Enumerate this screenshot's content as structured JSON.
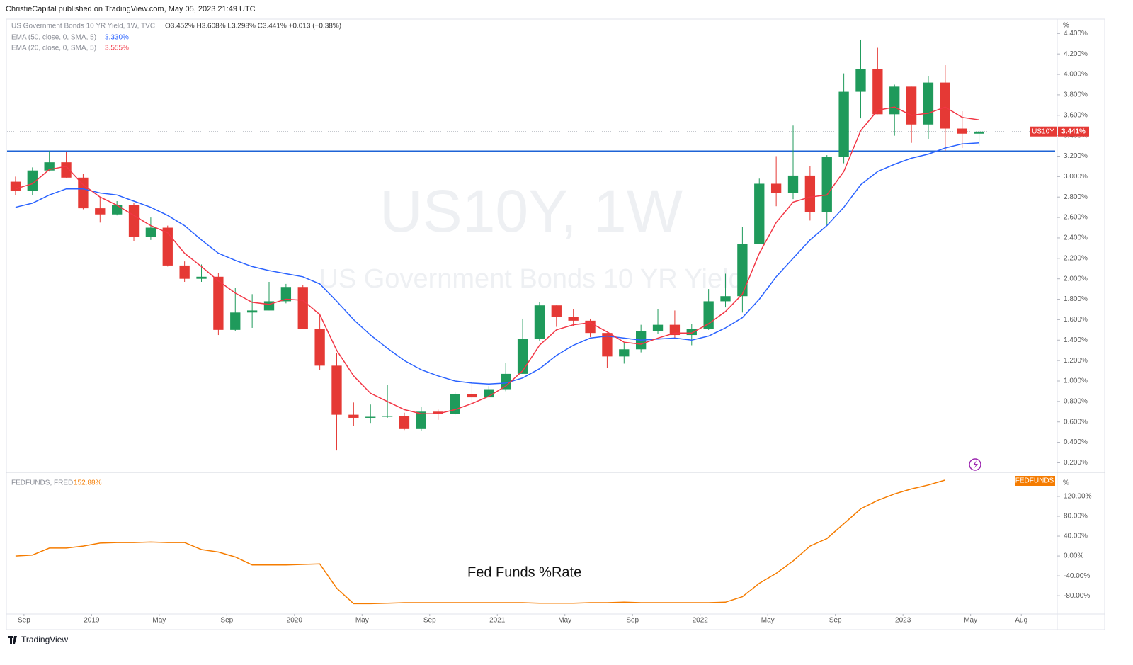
{
  "header": "ChristieCapital published on TradingView.com, May 05, 2023 21:49 UTC",
  "footer": "TradingView",
  "chart_data": [
    {
      "type": "candlestick",
      "title": "US Government Bonds 10 YR Yield, 1W, TVC",
      "ohlc_label": "O3.452% H3.608% L3.298% C3.441% +0.013 (+0.38%)",
      "watermark": "US10Y, 1W",
      "watermark_subtitle": "US Government Bonds 10 YR Yield",
      "y_unit": "%",
      "up_color": "#1f9a5b",
      "down_color": "#e53935",
      "x": [
        "2018-08",
        "2018-09",
        "2018-10",
        "2018-11",
        "2018-12",
        "2019-01",
        "2019-02",
        "2019-03",
        "2019-04",
        "2019-05",
        "2019-06",
        "2019-07",
        "2019-08",
        "2019-09",
        "2019-10",
        "2019-11",
        "2019-12",
        "2020-01",
        "2020-02",
        "2020-03",
        "2020-04",
        "2020-05",
        "2020-06",
        "2020-07",
        "2020-08",
        "2020-09",
        "2020-10",
        "2020-11",
        "2020-12",
        "2021-01",
        "2021-02",
        "2021-03",
        "2021-04",
        "2021-05",
        "2021-06",
        "2021-07",
        "2021-08",
        "2021-09",
        "2021-10",
        "2021-11",
        "2021-12",
        "2022-01",
        "2022-02",
        "2022-03",
        "2022-04",
        "2022-05",
        "2022-06",
        "2022-07",
        "2022-08",
        "2022-09",
        "2022-10",
        "2022-11",
        "2022-12",
        "2023-01",
        "2023-02",
        "2023-03",
        "2023-04",
        "2023-05"
      ],
      "xlim": [
        "2018-08",
        "2023-10"
      ],
      "xticks": [
        {
          "value": "2018-09",
          "label": "Sep"
        },
        {
          "value": "2019-01",
          "label": "2019"
        },
        {
          "value": "2019-05",
          "label": "May"
        },
        {
          "value": "2019-09",
          "label": "Sep"
        },
        {
          "value": "2020-01",
          "label": "2020"
        },
        {
          "value": "2020-05",
          "label": "May"
        },
        {
          "value": "2020-09",
          "label": "Sep"
        },
        {
          "value": "2021-01",
          "label": "2021"
        },
        {
          "value": "2021-05",
          "label": "May"
        },
        {
          "value": "2021-09",
          "label": "Sep"
        },
        {
          "value": "2022-01",
          "label": "2022"
        },
        {
          "value": "2022-05",
          "label": "May"
        },
        {
          "value": "2022-09",
          "label": "Sep"
        },
        {
          "value": "2023-01",
          "label": "2023"
        },
        {
          "value": "2023-05",
          "label": "May"
        },
        {
          "value": "2023-08",
          "label": "Aug"
        }
      ],
      "ylim": [
        0.12,
        4.52
      ],
      "yticks": [
        {
          "value": 0.2,
          "label": "0.200%"
        },
        {
          "value": 0.4,
          "label": "0.400%"
        },
        {
          "value": 0.6,
          "label": "0.600%"
        },
        {
          "value": 0.8,
          "label": "0.800%"
        },
        {
          "value": 1.0,
          "label": "1.000%"
        },
        {
          "value": 1.2,
          "label": "1.200%"
        },
        {
          "value": 1.4,
          "label": "1.400%"
        },
        {
          "value": 1.6,
          "label": "1.600%"
        },
        {
          "value": 1.8,
          "label": "1.800%"
        },
        {
          "value": 2.0,
          "label": "2.000%"
        },
        {
          "value": 2.2,
          "label": "2.200%"
        },
        {
          "value": 2.4,
          "label": "2.400%"
        },
        {
          "value": 2.6,
          "label": "2.600%"
        },
        {
          "value": 2.8,
          "label": "2.800%"
        },
        {
          "value": 3.0,
          "label": "3.000%"
        },
        {
          "value": 3.2,
          "label": "3.200%"
        },
        {
          "value": 3.4,
          "label": "3.400%"
        },
        {
          "value": 3.6,
          "label": "3.600%"
        },
        {
          "value": 3.8,
          "label": "3.800%"
        },
        {
          "value": 4.0,
          "label": "4.000%"
        },
        {
          "value": 4.2,
          "label": "4.200%"
        },
        {
          "value": 4.4,
          "label": "4.400%"
        }
      ],
      "ohlc": [
        [
          2.95,
          3.0,
          2.82,
          2.86
        ],
        [
          2.86,
          3.09,
          2.82,
          3.06
        ],
        [
          3.06,
          3.25,
          3.05,
          3.14
        ],
        [
          3.14,
          3.24,
          2.99,
          2.99
        ],
        [
          2.99,
          3.03,
          2.68,
          2.69
        ],
        [
          2.69,
          2.8,
          2.55,
          2.63
        ],
        [
          2.63,
          2.76,
          2.62,
          2.72
        ],
        [
          2.72,
          2.74,
          2.37,
          2.41
        ],
        [
          2.41,
          2.6,
          2.38,
          2.5
        ],
        [
          2.5,
          2.52,
          2.12,
          2.13
        ],
        [
          2.13,
          2.17,
          1.97,
          2.0
        ],
        [
          2.0,
          2.14,
          1.97,
          2.02
        ],
        [
          2.02,
          2.06,
          1.45,
          1.5
        ],
        [
          1.5,
          1.91,
          1.49,
          1.67
        ],
        [
          1.67,
          1.85,
          1.52,
          1.69
        ],
        [
          1.69,
          1.97,
          1.69,
          1.78
        ],
        [
          1.78,
          1.95,
          1.76,
          1.92
        ],
        [
          1.92,
          1.94,
          1.51,
          1.51
        ],
        [
          1.51,
          1.66,
          1.11,
          1.15
        ],
        [
          1.15,
          1.27,
          0.32,
          0.67
        ],
        [
          0.67,
          0.79,
          0.56,
          0.64
        ],
        [
          0.64,
          0.77,
          0.59,
          0.65
        ],
        [
          0.65,
          0.96,
          0.64,
          0.66
        ],
        [
          0.66,
          0.69,
          0.52,
          0.53
        ],
        [
          0.53,
          0.75,
          0.51,
          0.7
        ],
        [
          0.7,
          0.72,
          0.62,
          0.68
        ],
        [
          0.68,
          0.89,
          0.67,
          0.87
        ],
        [
          0.87,
          0.98,
          0.77,
          0.84
        ],
        [
          0.84,
          0.95,
          0.84,
          0.92
        ],
        [
          0.92,
          1.18,
          0.9,
          1.07
        ],
        [
          1.07,
          1.61,
          1.07,
          1.41
        ],
        [
          1.41,
          1.77,
          1.39,
          1.74
        ],
        [
          1.74,
          1.74,
          1.53,
          1.63
        ],
        [
          1.63,
          1.7,
          1.54,
          1.59
        ],
        [
          1.59,
          1.61,
          1.43,
          1.47
        ],
        [
          1.47,
          1.47,
          1.13,
          1.24
        ],
        [
          1.24,
          1.38,
          1.17,
          1.31
        ],
        [
          1.31,
          1.55,
          1.28,
          1.49
        ],
        [
          1.49,
          1.7,
          1.46,
          1.55
        ],
        [
          1.55,
          1.69,
          1.42,
          1.45
        ],
        [
          1.45,
          1.56,
          1.35,
          1.51
        ],
        [
          1.51,
          1.9,
          1.5,
          1.78
        ],
        [
          1.78,
          2.05,
          1.72,
          1.83
        ],
        [
          1.83,
          2.51,
          1.67,
          2.34
        ],
        [
          2.34,
          2.98,
          2.34,
          2.93
        ],
        [
          2.93,
          3.2,
          2.71,
          2.84
        ],
        [
          2.84,
          3.5,
          2.78,
          3.01
        ],
        [
          3.01,
          3.1,
          2.57,
          2.65
        ],
        [
          2.65,
          3.21,
          2.52,
          3.19
        ],
        [
          3.19,
          4.01,
          3.13,
          3.83
        ],
        [
          3.83,
          4.34,
          3.57,
          4.05
        ],
        [
          4.05,
          4.26,
          3.61,
          3.61
        ],
        [
          3.61,
          3.9,
          3.4,
          3.88
        ],
        [
          3.88,
          3.88,
          3.33,
          3.51
        ],
        [
          3.51,
          3.98,
          3.37,
          3.92
        ],
        [
          3.92,
          4.09,
          3.25,
          3.47
        ],
        [
          3.47,
          3.64,
          3.28,
          3.42
        ],
        [
          3.42,
          3.45,
          3.3,
          3.44
        ]
      ],
      "series": [
        {
          "name": "EMA (50, close, 0, SMA, 5)",
          "color": "#2962ff",
          "value_label": "3.330%",
          "values": [
            2.7,
            2.74,
            2.82,
            2.88,
            2.88,
            2.84,
            2.82,
            2.76,
            2.7,
            2.62,
            2.52,
            2.38,
            2.25,
            2.18,
            2.12,
            2.08,
            2.05,
            2.02,
            1.95,
            1.78,
            1.6,
            1.45,
            1.32,
            1.2,
            1.11,
            1.05,
            1.0,
            0.98,
            0.97,
            0.98,
            1.03,
            1.12,
            1.25,
            1.35,
            1.42,
            1.44,
            1.42,
            1.4,
            1.41,
            1.42,
            1.4,
            1.44,
            1.52,
            1.62,
            1.8,
            2.02,
            2.2,
            2.38,
            2.52,
            2.7,
            2.92,
            3.05,
            3.12,
            3.18,
            3.22,
            3.28,
            3.32,
            3.33
          ]
        },
        {
          "name": "EMA (20, close, 0, SMA, 5)",
          "color": "#f23645",
          "value_label": "3.555%",
          "values": [
            2.88,
            2.93,
            3.07,
            3.1,
            2.92,
            2.8,
            2.72,
            2.62,
            2.52,
            2.45,
            2.25,
            2.12,
            1.98,
            1.86,
            1.77,
            1.75,
            1.8,
            1.79,
            1.65,
            1.3,
            1.05,
            0.88,
            0.8,
            0.72,
            0.68,
            0.68,
            0.72,
            0.78,
            0.85,
            0.95,
            1.1,
            1.35,
            1.5,
            1.55,
            1.57,
            1.48,
            1.38,
            1.36,
            1.42,
            1.47,
            1.47,
            1.56,
            1.68,
            1.85,
            2.25,
            2.55,
            2.75,
            2.8,
            2.82,
            3.05,
            3.45,
            3.65,
            3.68,
            3.6,
            3.62,
            3.68,
            3.58,
            3.555
          ]
        }
      ],
      "hline": {
        "value": 3.25,
        "color": "#1e63d6"
      },
      "last_price": {
        "value": 3.441,
        "symbol": "US10Y",
        "label": "3.441%",
        "color": "#e53935"
      }
    },
    {
      "type": "line",
      "title": "FEDFUNDS, FRED",
      "value_label": "152.88%",
      "tag": "FEDFUNDS",
      "annotation": "Fed Funds %Rate",
      "y_unit": "%",
      "color": "#f57c00",
      "x": [
        "2018-08",
        "2018-09",
        "2018-10",
        "2018-11",
        "2018-12",
        "2019-01",
        "2019-02",
        "2019-03",
        "2019-04",
        "2019-05",
        "2019-06",
        "2019-07",
        "2019-08",
        "2019-09",
        "2019-10",
        "2019-11",
        "2019-12",
        "2020-01",
        "2020-02",
        "2020-03",
        "2020-04",
        "2020-05",
        "2020-06",
        "2020-07",
        "2020-08",
        "2020-09",
        "2020-10",
        "2020-11",
        "2020-12",
        "2021-01",
        "2021-02",
        "2021-03",
        "2021-04",
        "2021-05",
        "2021-06",
        "2021-07",
        "2021-08",
        "2021-09",
        "2021-10",
        "2021-11",
        "2021-12",
        "2022-01",
        "2022-02",
        "2022-03",
        "2022-04",
        "2022-05",
        "2022-06",
        "2022-07",
        "2022-08",
        "2022-09",
        "2022-10",
        "2022-11",
        "2022-12",
        "2023-01",
        "2023-02",
        "2023-03",
        "2023-04",
        "2023-05"
      ],
      "xlim": [
        "2018-08",
        "2023-10"
      ],
      "ylim": [
        -114,
        167
      ],
      "yticks": [
        {
          "value": -80,
          "label": "-80.00%"
        },
        {
          "value": -40,
          "label": "-40.00%"
        },
        {
          "value": 0,
          "label": "0.00%"
        },
        {
          "value": 40,
          "label": "40.00%"
        },
        {
          "value": 80,
          "label": "80.00%"
        },
        {
          "value": 120,
          "label": "120.00%"
        }
      ],
      "values": [
        0,
        2,
        16,
        16,
        20,
        26,
        27,
        27,
        28,
        27,
        27,
        13,
        8,
        -2,
        -18,
        -18,
        -18,
        -17,
        -16,
        -65,
        -96,
        -96,
        -95,
        -94,
        -94,
        -94,
        -94,
        -94,
        -94,
        -94,
        -94,
        -95,
        -95,
        -95,
        -94,
        -94,
        -93,
        -94,
        -94,
        -94,
        -94,
        -94,
        -93,
        -82,
        -55,
        -35,
        -10,
        20,
        35,
        65,
        95,
        112,
        125,
        135,
        143,
        152.88,
        null,
        null
      ]
    }
  ]
}
